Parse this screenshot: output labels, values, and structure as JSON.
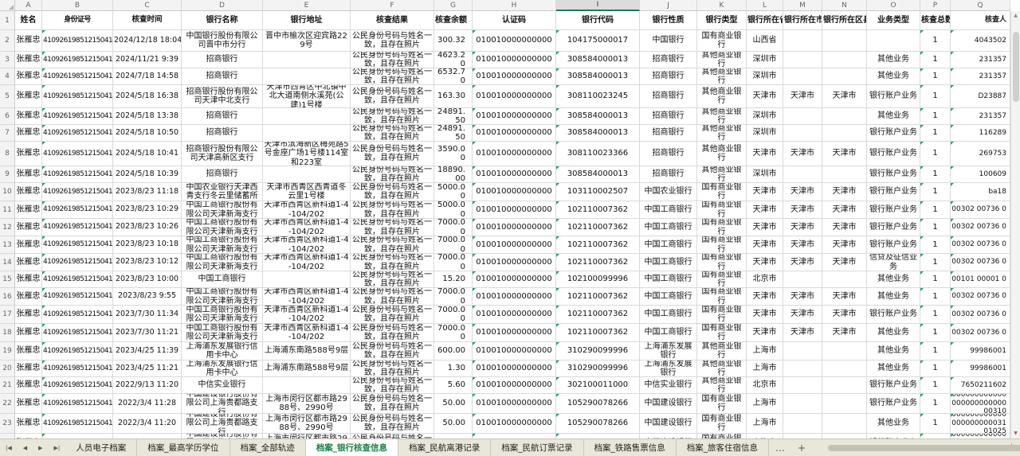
{
  "colors": {
    "accent_green": "#1b7c53",
    "active_tab_text": "#1a7f46",
    "error_triangle": "#21a366",
    "popup_orange": "#e2602c"
  },
  "grid": {
    "column_letters": [
      "A",
      "B",
      "C",
      "D",
      "E",
      "F",
      "G",
      "H",
      "I",
      "J",
      "K",
      "L",
      "M",
      "N",
      "O",
      "P",
      "Q"
    ],
    "active_column": "I",
    "headers": [
      "姓名",
      "身份证号",
      "核查时间",
      "银行名称",
      "银行地址",
      "核查结果",
      "核查余额",
      "认证码",
      "银行代码",
      "银行性质",
      "银行类型",
      "银行所在省",
      "银行所在市",
      "银行所在区县",
      "业务类型",
      "核查总数",
      "核查人"
    ],
    "rows": [
      {
        "n": "2",
        "cells": [
          "张雁忠",
          "410926198512150412",
          "2024/12/18 18:04",
          "中国银行股份有限公司晋中市分行",
          "晋中市榆次区迎宾路229号",
          "公民身份号码与姓名一致，且存在照片",
          "300.32",
          "010010000000000",
          "104175000017",
          "中国银行",
          "国有商业银行",
          "山西省",
          "",
          "",
          "",
          "1",
          "4043502"
        ]
      },
      {
        "n": "3",
        "cells": [
          "张雁忠",
          "410926198512150412",
          "2024/11/21 9:39",
          "招商银行",
          "",
          "公民身份号码与姓名一致，且存在照片",
          "4623.20",
          "010010000000000",
          "308584000013",
          "招商银行",
          "其他商业银行",
          "深圳市",
          "",
          "",
          "其他业务",
          "1",
          "231357"
        ]
      },
      {
        "n": "4",
        "cells": [
          "张雁忠",
          "410926198512150412",
          "2024/7/18 14:58",
          "招商银行",
          "",
          "公民身份号码与姓名一致，且存在照片",
          "6532.70",
          "010010000000000",
          "308584000013",
          "招商银行",
          "其他商业银行",
          "深圳市",
          "",
          "",
          "其他业务",
          "1",
          "231357"
        ]
      },
      {
        "n": "5",
        "cells": [
          "张雁忠",
          "410926198512150412",
          "2024/5/18 16:38",
          "招商银行股份有限公司天津中北支行",
          "天津市西青区中北镇中北大道南侧水溪苑(公建)1号楼",
          "公民身份号码与姓名一致，且存在照片",
          "163.30",
          "010010000000000",
          "308110023245",
          "招商银行",
          "其他商业银行",
          "天津市",
          "天津市",
          "天津市",
          "银行账户业务",
          "1",
          "D23887"
        ]
      },
      {
        "n": "6",
        "cells": [
          "张雁忠",
          "410926198512150412",
          "2024/5/18 13:38",
          "招商银行",
          "",
          "公民身份号码与姓名一致，且存在照片",
          "24891.50",
          "010010000000000",
          "308584000013",
          "招商银行",
          "其他商业银行",
          "深圳市",
          "",
          "",
          "其他业务",
          "1",
          "231357"
        ]
      },
      {
        "n": "7",
        "cells": [
          "张雁忠",
          "410926198512150412",
          "2024/5/18 10:50",
          "招商银行",
          "",
          "公民身份号码与姓名一致，且存在照片",
          "24891.50",
          "010010000000000",
          "308584000013",
          "招商银行",
          "其他商业银行",
          "深圳市",
          "",
          "",
          "银行账户业务",
          "1",
          "116289"
        ]
      },
      {
        "n": "8",
        "cells": [
          "张雁忠",
          "410926198512150412",
          "2024/5/18 10:41",
          "招商银行股份有限公司天津高新区支行",
          "天津市滨海新区梅苑路5号金座广场1号楼114室和223室",
          "公民身份号码与姓名一致，且存在照片",
          "3590.00",
          "010010000000000",
          "308110023366",
          "招商银行",
          "其他商业银行",
          "天津市",
          "天津市",
          "天津市",
          "银行账户业务",
          "1",
          "269753"
        ]
      },
      {
        "n": "9",
        "cells": [
          "张雁忠",
          "410926198512150412",
          "2024/5/18 10:39",
          "招商银行",
          "",
          "公民身份号码与姓名一致，且存在照片",
          "18890.00",
          "010010000000000",
          "308584000013",
          "招商银行",
          "其他商业银行",
          "深圳市",
          "",
          "",
          "银行账户业务",
          "1",
          "100609"
        ]
      },
      {
        "n": "10",
        "cells": [
          "张雁忠",
          "410926198512150412",
          "2023/8/23 11:18",
          "中国农业银行天津西青支行冬云里储蓄所",
          "天津市西青区西青道冬云里1号楼",
          "公民身份号码与姓名一致，且存在照片",
          "5000.00",
          "010010000000000",
          "103110002507",
          "中国农业银行",
          "国有商业银行",
          "天津市",
          "天津市",
          "天津市",
          "银行账户业务",
          "1",
          "ba18"
        ]
      },
      {
        "n": "11",
        "cells": [
          "张雁忠",
          "410926198512150412",
          "2023/8/23 10:29",
          "中国工商银行股份有限公司天津新海支行",
          "天津市西青区新科道1-4-104/202",
          "公民身份号码与姓名一致，且存在照片",
          "5000.00",
          "010010000000000",
          "102110007362",
          "中国工商银行",
          "国有商业银行",
          "天津市",
          "天津市",
          "天津市",
          "银行账户业务",
          "1",
          "00302 00736 0"
        ]
      },
      {
        "n": "12",
        "cells": [
          "张雁忠",
          "410926198512150412",
          "2023/8/23 10:26",
          "中国工商银行股份有限公司天津新海支行",
          "天津市西青区新科道1-4-104/202",
          "公民身份号码与姓名一致，且存在照片",
          "7000.00",
          "010010000000000",
          "102110007362",
          "中国工商银行",
          "国有商业银行",
          "天津市",
          "天津市",
          "天津市",
          "银行账户业务",
          "1",
          "00302 00736 0"
        ]
      },
      {
        "n": "13",
        "cells": [
          "张雁忠",
          "410926198512150412",
          "2023/8/23 10:18",
          "中国工商银行股份有限公司天津新海支行",
          "天津市西青区新科道1-4-104/202",
          "公民身份号码与姓名一致，且存在照片",
          "7000.00",
          "010010000000000",
          "102110007362",
          "中国工商银行",
          "国有商业银行",
          "天津市",
          "天津市",
          "天津市",
          "银行账户业务",
          "1",
          "00302 00736 0"
        ]
      },
      {
        "n": "14",
        "cells": [
          "张雁忠",
          "410926198512150412",
          "2023/8/23 10:12",
          "中国工商银行股份有限公司天津新海支行",
          "天津市西青区新科道1-4-104/202",
          "公民身份号码与姓名一致，且存在照片",
          "7000.00",
          "010010000000000",
          "102110007362",
          "中国工商银行",
          "国有商业银行",
          "天津市",
          "天津市",
          "天津市",
          "信贷及征信业务",
          "1",
          "00302 00736 0"
        ]
      },
      {
        "n": "15",
        "cells": [
          "张雁忠",
          "410926198512150412",
          "2023/8/23 10:00",
          "中国工商银行",
          "",
          "公民身份号码与姓名一致，且存在照片",
          "15.20",
          "010010000000000",
          "102100099996",
          "中国工商银行",
          "国有商业银行",
          "北京市",
          "",
          "",
          "其他业务",
          "1",
          "00101 00001 0"
        ]
      },
      {
        "n": "16",
        "cells": [
          "张雁忠",
          "410926198512150412",
          "2023/8/23 9:55",
          "中国工商银行股份有限公司天津新海支行",
          "天津市西青区新科道1-4-104/202",
          "公民身份号码与姓名一致，且存在照片",
          "7000.00",
          "010010000000000",
          "102110007362",
          "中国工商银行",
          "国有商业银行",
          "天津市",
          "天津市",
          "天津市",
          "其他业务",
          "1",
          "00302 00736 0"
        ]
      },
      {
        "n": "17",
        "cells": [
          "张雁忠",
          "410926198512150412",
          "2023/7/30 11:34",
          "中国工商银行股份有限公司天津新海支行",
          "天津市西青区新科道1-4-104/202",
          "公民身份号码与姓名一致，且存在照片",
          "7000.00",
          "010010000000000",
          "102110007362",
          "中国工商银行",
          "国有商业银行",
          "天津市",
          "天津市",
          "天津市",
          "银行账户业务",
          "1",
          "00302 00736 0"
        ]
      },
      {
        "n": "18",
        "cells": [
          "张雁忠",
          "410926198512150412",
          "2023/7/30 11:21",
          "中国工商银行股份有限公司天津新海支行",
          "天津市西青区新科道1-4-104/202",
          "公民身份号码与姓名一致，且存在照片",
          "7000.00",
          "010010000000000",
          "102110007362",
          "中国工商银行",
          "国有商业银行",
          "天津市",
          "天津市",
          "天津市",
          "其他业务",
          "1",
          "00302 00736 0"
        ]
      },
      {
        "n": "19",
        "cells": [
          "张雁忠",
          "410926198512150412",
          "2023/4/25 11:39",
          "上海浦东发展银行信用卡中心",
          "上海浦东南路588号9层",
          "公民身份号码与姓名一致，且存在照片",
          "600.00",
          "010010000000000",
          "310290099996",
          "上海浦东发展银行",
          "其他商业银行",
          "上海市",
          "",
          "",
          "其他业务",
          "1",
          "99986001"
        ]
      },
      {
        "n": "20",
        "cells": [
          "张雁忠",
          "410926198512150412",
          "2023/4/25 11:21",
          "上海浦东发展银行信用卡中心",
          "上海浦东南路588号9层",
          "公民身份号码与姓名一致，且存在照片",
          "1.30",
          "010010000000000",
          "310290099996",
          "上海浦东发展银行",
          "其他商业银行",
          "上海市",
          "",
          "",
          "其他业务",
          "1",
          "99986001"
        ]
      },
      {
        "n": "21",
        "cells": [
          "张雁忠",
          "410926198512150412",
          "2022/9/13 11:20",
          "中信实业银行",
          "",
          "公民身份号码与姓名一致，且存在照片",
          "5.60",
          "010010000000000",
          "302100011000",
          "中信实业银行",
          "其他商业银行",
          "北京市",
          "",
          "",
          "银行账户业务",
          "1",
          "7650211602"
        ]
      },
      {
        "n": "22",
        "cells": [
          "张雁忠",
          "410926198512150412",
          "2022/3/4 11:28",
          "中国建设银行股份有限公司上海贵都路支行",
          "上海市闵行区都市路2988号、2990号",
          "公民身份号码与姓名一致，且存在照片",
          "50.00",
          "010010000000000",
          "105290078266",
          "中国建设银行",
          "国有商业银行",
          "上海市",
          "",
          "",
          "银行账户业务",
          "1",
          "00000000000000000000000000310"
        ]
      },
      {
        "n": "23",
        "cells": [
          "张雁忠",
          "410926198512150412",
          "2022/3/4 11:20",
          "中国建设银行股份有限公司上海贵都路支行",
          "上海市闵行区都市路2988号、2990号",
          "公民身份号码与姓名一致，且存在照片",
          "50.00",
          "010010000000000",
          "105290078266",
          "中国建设银行",
          "国有商业银行",
          "上海市",
          "",
          "",
          "其他业务",
          "1",
          "00000000000000000000003101025"
        ]
      },
      {
        "n": "24",
        "cells": [
          "张雁忠",
          "410926198512150412",
          "2022/3/4 11:20",
          "中国建设银行股份有限公司上海贵都路支行",
          "上海市闵行区都市路2988号、2990号",
          "公民身份号码与姓名一致，且存在照片",
          "50.00",
          "010010000000000",
          "105290078266",
          "中国建设银行",
          "国有商业银行",
          "上海市",
          "",
          "",
          "银行账户业务",
          "1",
          "00000000000000000000003101025"
        ]
      }
    ]
  },
  "tabbar": {
    "nav": [
      {
        "name": "first-sheet-icon",
        "glyph": "|◀"
      },
      {
        "name": "prev-sheet-icon",
        "glyph": "◀"
      },
      {
        "name": "next-sheet-icon",
        "glyph": "▶"
      },
      {
        "name": "last-sheet-icon",
        "glyph": "▶|"
      }
    ],
    "tabs": [
      {
        "label": "人员电子档案",
        "active": false
      },
      {
        "label": "档案_最高学历学位",
        "active": false
      },
      {
        "label": "档案_全部轨迹",
        "active": false
      },
      {
        "label": "档案_银行核查信息",
        "active": true
      },
      {
        "label": "档案_民航离港记录",
        "active": false
      },
      {
        "label": "档案_民航订票记录",
        "active": false
      },
      {
        "label": "档案_铁路售票信息",
        "active": false
      },
      {
        "label": "档案_旅客住宿信息",
        "active": false
      }
    ],
    "more_label": "…",
    "add_label": "+",
    "scroll_right_glyph": "▸"
  }
}
